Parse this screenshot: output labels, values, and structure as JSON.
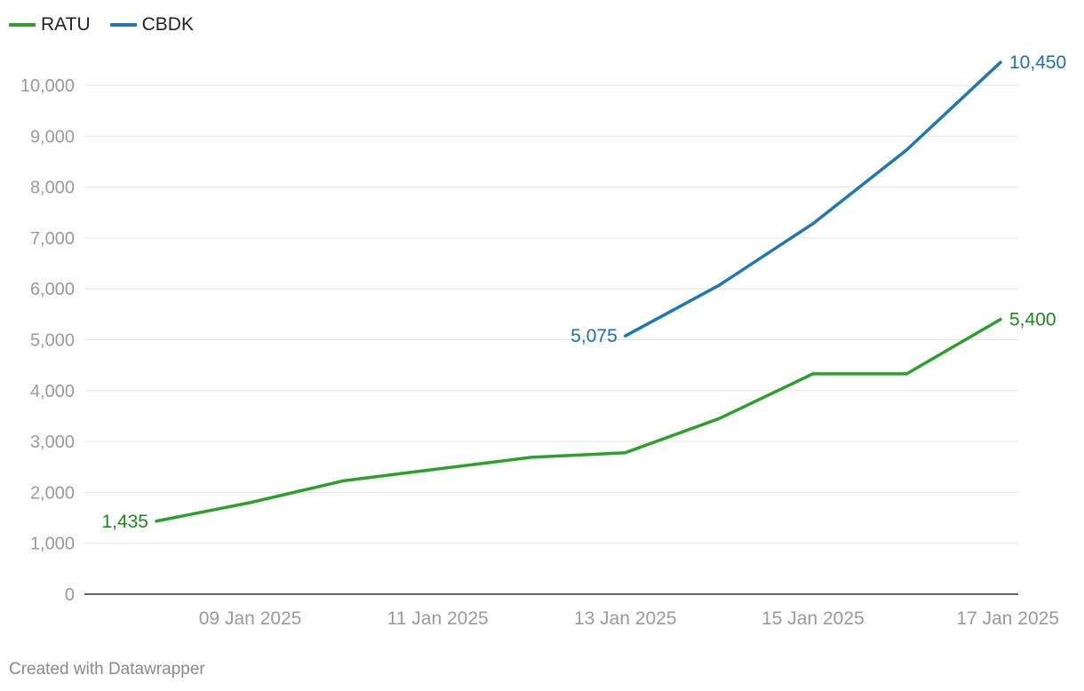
{
  "chart_data": {
    "type": "line",
    "x": [
      "08 Jan 2025",
      "09 Jan 2025",
      "10 Jan 2025",
      "11 Jan 2025",
      "12 Jan 2025",
      "13 Jan 2025",
      "14 Jan 2025",
      "15 Jan 2025",
      "16 Jan 2025",
      "17 Jan 2025"
    ],
    "x_ticks": [
      "09 Jan 2025",
      "11 Jan 2025",
      "13 Jan 2025",
      "15 Jan 2025",
      "17 Jan 2025"
    ],
    "y_ticks": [
      "0",
      "1,000",
      "2,000",
      "3,000",
      "4,000",
      "5,000",
      "6,000",
      "7,000",
      "8,000",
      "9,000",
      "10,000"
    ],
    "ylim": [
      0,
      10000
    ],
    "grid": true,
    "legend_position": "top-left",
    "series": [
      {
        "name": "RATU",
        "color": "#2ca02c",
        "label_color": "#1a8a1a",
        "values": [
          1435,
          1800,
          2230,
          2460,
          2690,
          2780,
          3450,
          4330,
          4330,
          5400
        ],
        "start_label": "1,435",
        "end_label": "5,400"
      },
      {
        "name": "CBDK",
        "color": "#1f77b4",
        "label_color": "#1f6fa8",
        "values": [
          null,
          null,
          null,
          null,
          null,
          5075,
          6070,
          7280,
          8730,
          10450
        ],
        "start_label": "5,075",
        "end_label": "10,450"
      }
    ]
  },
  "footer": "Created with Datawrapper"
}
